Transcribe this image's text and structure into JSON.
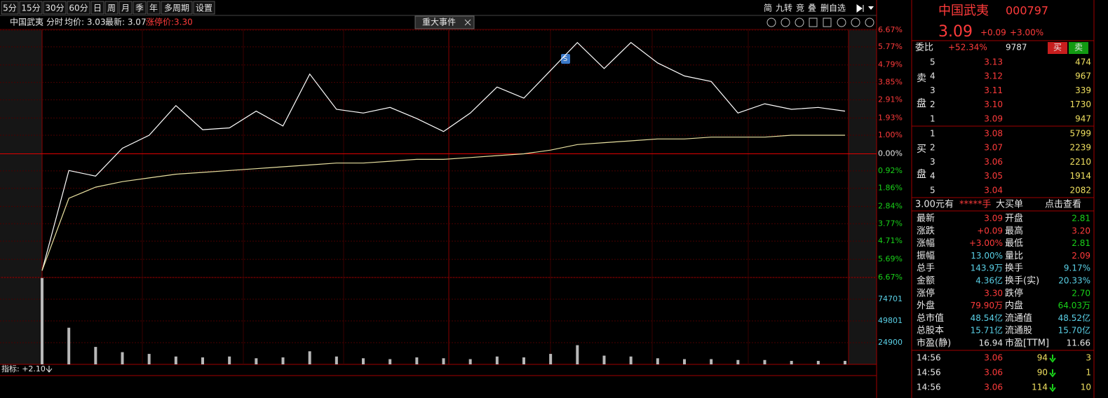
{
  "toolbar": {
    "periods": [
      "5分",
      "15分",
      "30分",
      "60分",
      "日",
      "周",
      "月",
      "季",
      "年",
      "多周期",
      "设置"
    ],
    "tools": [
      "简",
      "九转",
      "竞",
      "叠",
      "删自选"
    ]
  },
  "info_bar": {
    "name": "中国武夷",
    "mode": "分时",
    "avg": "均价: 3.03",
    "last": "最新: 3.07",
    "limit_up": "涨停价:3.30",
    "event_tag": "重大事件"
  },
  "signal": "S",
  "indicator": "指标: +2.10",
  "quote": {
    "name": "中国武夷",
    "code": "000797",
    "price": "3.09",
    "change": "+0.09",
    "pct": "+3.00%"
  },
  "weibi": {
    "label": "委比",
    "ratio": "+52.34%",
    "diff": "9787",
    "buy": "买",
    "sell": "卖"
  },
  "sell_label": [
    "卖",
    "盘"
  ],
  "buy_label": [
    "买",
    "盘"
  ],
  "sell": [
    [
      "5",
      "3.13",
      "474"
    ],
    [
      "4",
      "3.12",
      "967"
    ],
    [
      "3",
      "3.11",
      "339"
    ],
    [
      "2",
      "3.10",
      "1730"
    ],
    [
      "1",
      "3.09",
      "947"
    ]
  ],
  "buy": [
    [
      "1",
      "3.08",
      "5799"
    ],
    [
      "2",
      "3.07",
      "2239"
    ],
    [
      "3",
      "3.06",
      "2210"
    ],
    [
      "4",
      "3.05",
      "1914"
    ],
    [
      "5",
      "3.04",
      "2082"
    ]
  ],
  "big_order": [
    "3.00元有",
    "*****手",
    "大买单",
    "点击查看"
  ],
  "stats": [
    [
      "最新",
      "3.09",
      "开盘",
      "2.81"
    ],
    [
      "涨跌",
      "+0.09",
      "最高",
      "3.20"
    ],
    [
      "涨幅",
      "+3.00%",
      "最低",
      "2.81"
    ],
    [
      "振幅",
      "13.00%",
      "量比",
      "2.09"
    ],
    [
      "总手",
      "143.9万",
      "换手",
      "9.17%"
    ],
    [
      "金额",
      "4.36亿",
      "换手(实)",
      "20.33%"
    ],
    [
      "涨停",
      "3.30",
      "跌停",
      "2.70"
    ],
    [
      "外盘",
      "79.90万",
      "内盘",
      "64.03万"
    ],
    [
      "总市值",
      "48.54亿",
      "流通值",
      "48.52亿"
    ],
    [
      "总股本",
      "15.71亿",
      "流通股",
      "15.70亿"
    ],
    [
      "市盈(静)",
      "16.94",
      "市盈[TTM]",
      "11.66"
    ]
  ],
  "trades": [
    [
      "14:56",
      "3.06",
      "94",
      "3"
    ],
    [
      "14:56",
      "3.06",
      "90",
      "1"
    ],
    [
      "14:56",
      "3.06",
      "114",
      "10"
    ]
  ],
  "chart_data": [
    {
      "type": "line",
      "series": [
        {
          "color": "#ffffff",
          "values": [
            -6.3,
            -0.9,
            -1.2,
            0.3,
            1.0,
            2.6,
            1.3,
            1.4,
            2.3,
            1.5,
            4.3,
            2.4,
            2.2,
            2.5,
            1.9,
            1.2,
            2.2,
            3.6,
            3.0,
            4.5,
            6.0,
            4.6,
            6.0,
            4.9,
            4.2,
            3.9,
            2.2,
            2.7,
            2.4,
            2.5,
            2.3
          ]
        },
        {
          "color": "#e8e0a0",
          "values": [
            -6.3,
            -2.4,
            -1.8,
            -1.5,
            -1.3,
            -1.1,
            -1.0,
            -0.9,
            -0.8,
            -0.7,
            -0.6,
            -0.5,
            -0.5,
            -0.4,
            -0.3,
            -0.3,
            -0.2,
            -0.1,
            0,
            0.2,
            0.5,
            0.6,
            0.7,
            0.8,
            0.8,
            0.9,
            0.9,
            0.9,
            1.0,
            1.0,
            1.0
          ]
        }
      ],
      "ylim": [
        -6.67,
        6.67
      ],
      "yticks": [
        {
          "value": 6.67,
          "label": "6.67%"
        },
        {
          "value": 5.77,
          "label": "5.77%"
        },
        {
          "value": 4.79,
          "label": "4.79%"
        },
        {
          "value": 3.85,
          "label": "3.85%"
        },
        {
          "value": 2.91,
          "label": "2.91%"
        },
        {
          "value": 1.93,
          "label": "1.93%"
        },
        {
          "value": 1.0,
          "label": "1.00%"
        },
        {
          "value": 0,
          "label": "0.00%"
        },
        {
          "value": -0.92,
          "label": "0.92%"
        },
        {
          "value": -1.86,
          "label": "1.86%"
        },
        {
          "value": -2.84,
          "label": "2.84%"
        },
        {
          "value": -3.77,
          "label": "3.77%"
        },
        {
          "value": -4.71,
          "label": "4.71%"
        },
        {
          "value": -5.69,
          "label": "5.69%"
        },
        {
          "value": -6.67,
          "label": "6.67%"
        }
      ],
      "grid": true
    },
    {
      "type": "bar",
      "values": [
        99000,
        42000,
        20000,
        14000,
        12000,
        9000,
        8000,
        9000,
        7000,
        8000,
        15000,
        9000,
        7000,
        6000,
        8000,
        7000,
        6000,
        9000,
        8000,
        12000,
        22000,
        10000,
        9000,
        7000,
        6000,
        6000,
        5000,
        5000,
        4000,
        4000,
        4000
      ],
      "color": "#b8b8b8",
      "ylim": [
        0,
        99600
      ],
      "yticks": [
        24900,
        49801,
        74701
      ],
      "grid": true
    }
  ]
}
